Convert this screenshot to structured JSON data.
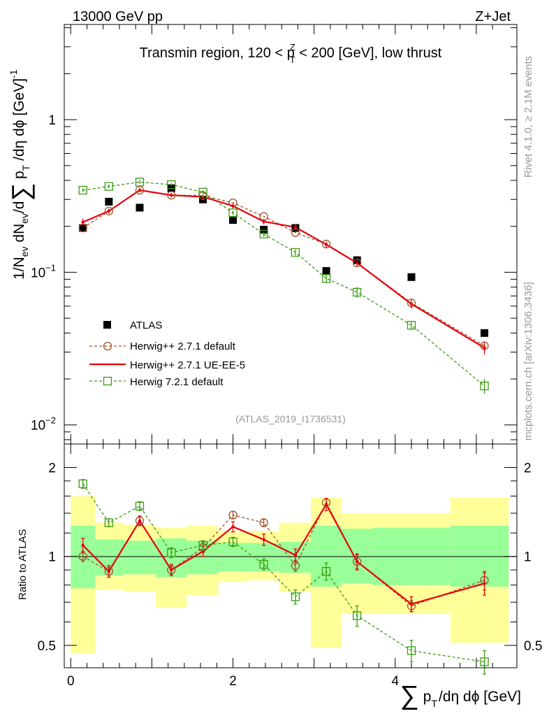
{
  "header": {
    "energy_label": "13000 GeV pp",
    "process_label": "Z+Jet"
  },
  "side": {
    "rivet_label": "Rivet 4.1.0, ≥ 2.1M events",
    "mcplots_label": "mcplots.cern.ch [arXiv:1306.3436]"
  },
  "colors": {
    "atlas": "#000000",
    "herwigpp_default": "#a0522d",
    "herwigpp_ueee5": "#e8000b",
    "herwig7": "#3a9c10",
    "band_inner": "#99ff99",
    "band_outer": "#ffff99"
  },
  "chart_data": [
    {
      "type": "scatter",
      "panel": "main",
      "title": "Transmin region, 120 < p_T^Z < 200 [GeV], low thrust",
      "title_parts": {
        "pre": "Transmin region, 120 < p",
        "sup": "Z",
        "sub": "T",
        "post": " < 200 [GeV], low thrust"
      },
      "analysis_label": "(ATLAS_2019_I1736531)",
      "ylabel": "1/N_ev dN_ev/d∑ p_T /dη dϕ [GeV]^-1",
      "ylabel_parts": {
        "a": "1/N",
        "a_sub": "ev",
        "b": " dN",
        "b_sub": "ev",
        "c": "/d",
        "sum": "∑",
        "d": " p",
        "d_sub": "T",
        "e": " /dη dϕ  [GeV]",
        "e_sup": "-1"
      },
      "yscale": "log",
      "ylim": [
        0.0075,
        4.2
      ],
      "xlim": [
        -0.08,
        5.5
      ],
      "ytick_labels": [
        {
          "value": 1,
          "base": "1",
          "exp": ""
        },
        {
          "value": 0.1,
          "base": "10",
          "exp": "−1"
        },
        {
          "value": 0.01,
          "base": "10",
          "exp": "−2"
        }
      ],
      "x": [
        0.15,
        0.47,
        0.85,
        1.24,
        1.63,
        2.0,
        2.38,
        2.77,
        3.15,
        3.53,
        4.2,
        5.1
      ],
      "series": [
        {
          "name": "ATLAS",
          "key": "atlas",
          "style": "data",
          "values": [
            0.195,
            0.29,
            0.265,
            0.355,
            0.3,
            0.22,
            0.19,
            0.195,
            0.102,
            0.12,
            0.093,
            0.04
          ]
        },
        {
          "name": "Herwig++ 2.7.1 default",
          "key": "herwigpp_default",
          "style": "circle-dashed",
          "values": [
            0.195,
            0.252,
            0.345,
            0.32,
            0.318,
            0.285,
            0.232,
            0.182,
            0.153,
            0.115,
            0.063,
            0.033
          ]
        },
        {
          "name": "Herwig++ 2.7.1 UE-EE-5",
          "key": "herwigpp_ueee5",
          "style": "solid",
          "values": [
            0.213,
            0.252,
            0.345,
            0.32,
            0.312,
            0.272,
            0.215,
            0.197,
            0.152,
            0.115,
            0.062,
            0.032
          ],
          "errors": [
            0.012,
            0.01,
            0.012,
            0.01,
            0.01,
            0.01,
            0.009,
            0.008,
            0.007,
            0.006,
            0.004,
            0.003
          ]
        },
        {
          "name": "Herwig 7.2.1 default",
          "key": "herwig7",
          "style": "square-dashed",
          "values": [
            0.345,
            0.365,
            0.39,
            0.375,
            0.335,
            0.245,
            0.178,
            0.135,
            0.091,
            0.074,
            0.045,
            0.018
          ],
          "errors": [
            0.01,
            0.01,
            0.011,
            0.01,
            0.01,
            0.008,
            0.007,
            0.006,
            0.006,
            0.006,
            0.003,
            0.002
          ]
        }
      ]
    },
    {
      "type": "scatter",
      "panel": "ratio",
      "ylabel": "Ratio to ATLAS",
      "xlabel": "∑ p_T /dη dϕ [GeV]",
      "xlabel_parts": {
        "sum": "∑",
        "a": "p",
        "a_sub": "T",
        "b": "/dη dϕ [GeV]"
      },
      "yscale": "log",
      "ylim": [
        0.42,
        2.4
      ],
      "xlim": [
        -0.08,
        5.5
      ],
      "ytick_labels": [
        {
          "value": 2,
          "label": "2"
        },
        {
          "value": 1,
          "label": "1"
        },
        {
          "value": 0.5,
          "label": "0.5"
        }
      ],
      "xtick_labels": [
        {
          "value": 0,
          "label": "0"
        },
        {
          "value": 2,
          "label": "2"
        },
        {
          "value": 4,
          "label": "4"
        }
      ],
      "bins": [
        {
          "x0": 0.0,
          "x1": 0.3,
          "inner": [
            0.78,
            1.27
          ],
          "outer": [
            0.47,
            1.6
          ]
        },
        {
          "x0": 0.3,
          "x1": 0.65,
          "inner": [
            0.86,
            1.14
          ],
          "outer": [
            0.77,
            1.3
          ]
        },
        {
          "x0": 0.65,
          "x1": 1.05,
          "inner": [
            0.87,
            1.13
          ],
          "outer": [
            0.76,
            1.28
          ]
        },
        {
          "x0": 1.05,
          "x1": 1.43,
          "inner": [
            0.85,
            1.15
          ],
          "outer": [
            0.67,
            1.25
          ]
        },
        {
          "x0": 1.43,
          "x1": 1.82,
          "inner": [
            0.87,
            1.13
          ],
          "outer": [
            0.74,
            1.27
          ]
        },
        {
          "x0": 1.82,
          "x1": 2.19,
          "inner": [
            0.89,
            1.11
          ],
          "outer": [
            0.82,
            1.22
          ]
        },
        {
          "x0": 2.19,
          "x1": 2.57,
          "inner": [
            0.89,
            1.11
          ],
          "outer": [
            0.83,
            1.22
          ]
        },
        {
          "x0": 2.57,
          "x1": 2.96,
          "inner": [
            0.88,
            1.12
          ],
          "outer": [
            0.76,
            1.3
          ]
        },
        {
          "x0": 2.96,
          "x1": 3.34,
          "inner": [
            0.79,
            1.27
          ],
          "outer": [
            0.49,
            1.58
          ]
        },
        {
          "x0": 3.34,
          "x1": 3.72,
          "inner": [
            0.81,
            1.24
          ],
          "outer": [
            0.64,
            1.4
          ]
        },
        {
          "x0": 3.72,
          "x1": 4.68,
          "inner": [
            0.8,
            1.25
          ],
          "outer": [
            0.64,
            1.4
          ]
        },
        {
          "x0": 4.68,
          "x1": 5.4,
          "inner": [
            0.79,
            1.27
          ],
          "outer": [
            0.51,
            1.58
          ]
        }
      ],
      "series": [
        {
          "name": "Herwig++ 2.7.1 default",
          "key": "herwigpp_default",
          "style": "circle-dashed",
          "values": [
            1.0,
            0.89,
            1.32,
            0.9,
            1.07,
            1.38,
            1.3,
            0.93,
            1.52,
            0.96,
            0.68,
            0.83
          ],
          "errors": [
            0.04,
            0.04,
            0.04,
            0.03,
            0.04,
            0.04,
            0.04,
            0.04,
            0.05,
            0.05,
            0.03,
            0.06
          ]
        },
        {
          "name": "Herwig++ 2.7.1 UE-EE-5",
          "key": "herwigpp_ueee5",
          "style": "solid",
          "values": [
            1.09,
            0.89,
            1.32,
            0.9,
            1.04,
            1.26,
            1.14,
            1.01,
            1.5,
            0.96,
            0.69,
            0.81
          ],
          "errors": [
            0.06,
            0.04,
            0.05,
            0.04,
            0.04,
            0.05,
            0.05,
            0.05,
            0.07,
            0.06,
            0.04,
            0.07
          ]
        },
        {
          "name": "Herwig 7.2.1 default",
          "key": "herwig7",
          "style": "square-dashed",
          "values": [
            1.76,
            1.3,
            1.48,
            1.03,
            1.09,
            1.12,
            0.94,
            0.73,
            0.89,
            0.63,
            0.48,
            0.44
          ],
          "errors": [
            0.06,
            0.04,
            0.05,
            0.04,
            0.04,
            0.04,
            0.04,
            0.04,
            0.06,
            0.05,
            0.04,
            0.04
          ]
        }
      ]
    }
  ]
}
